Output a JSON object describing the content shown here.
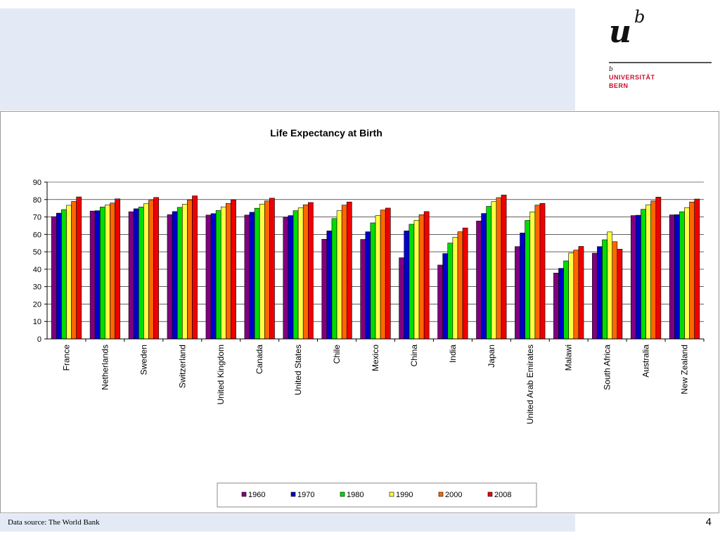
{
  "logo": {
    "mark_u": "u",
    "mark_b": "b",
    "small_b": "b",
    "line1": "UNIVERSITÄT",
    "line2": "BERN"
  },
  "footer": {
    "source": "Data source: The World Bank",
    "page_number": "4"
  },
  "chart_data": {
    "type": "bar",
    "title": "Life Expectancy at Birth",
    "xlabel": "",
    "ylabel": "",
    "ylim": [
      0,
      90
    ],
    "yticks": [
      0,
      10,
      20,
      30,
      40,
      50,
      60,
      70,
      80,
      90
    ],
    "grid": true,
    "legend_position": "bottom",
    "categories": [
      "France",
      "Netherlands",
      "Sweden",
      "Switzerland",
      "United Kingdom",
      "Canada",
      "United States",
      "Chile",
      "Mexico",
      "China",
      "India",
      "Japan",
      "United Arab Emirates",
      "Malawi",
      "South Africa",
      "Australia",
      "New Zealand"
    ],
    "series": [
      {
        "name": "1960",
        "color": "#800080",
        "values": [
          70.2,
          73.4,
          73.0,
          71.3,
          71.1,
          71.1,
          69.8,
          57.2,
          57.1,
          46.6,
          42.4,
          67.7,
          53.0,
          37.8,
          49.2,
          70.8,
          71.2
        ]
      },
      {
        "name": "1970",
        "color": "#0000cc",
        "values": [
          72.2,
          73.6,
          74.7,
          73.1,
          71.9,
          72.7,
          70.8,
          62.0,
          61.5,
          62.0,
          49.0,
          72.0,
          60.8,
          40.5,
          53.0,
          71.0,
          71.3
        ]
      },
      {
        "name": "1980",
        "color": "#00dd00",
        "values": [
          74.2,
          75.7,
          75.7,
          75.5,
          73.7,
          75.0,
          73.6,
          69.1,
          66.6,
          65.8,
          55.0,
          76.1,
          68.0,
          44.8,
          56.9,
          74.4,
          73.0
        ]
      },
      {
        "name": "1990",
        "color": "#ffff44",
        "values": [
          76.7,
          76.9,
          77.6,
          77.3,
          75.8,
          77.4,
          75.2,
          73.6,
          70.8,
          68.1,
          58.3,
          78.8,
          72.9,
          49.3,
          61.4,
          77.0,
          75.4
        ]
      },
      {
        "name": "2000",
        "color": "#ff6600",
        "values": [
          78.9,
          78.0,
          79.6,
          79.8,
          77.8,
          79.2,
          77.0,
          76.8,
          74.0,
          71.3,
          61.5,
          81.1,
          76.8,
          51.0,
          55.8,
          79.2,
          78.6
        ]
      },
      {
        "name": "2008",
        "color": "#ee0000",
        "values": [
          81.5,
          80.4,
          81.2,
          82.1,
          79.8,
          80.8,
          78.3,
          78.6,
          75.1,
          73.1,
          63.7,
          82.6,
          77.8,
          53.1,
          51.5,
          81.4,
          80.3
        ]
      }
    ]
  }
}
